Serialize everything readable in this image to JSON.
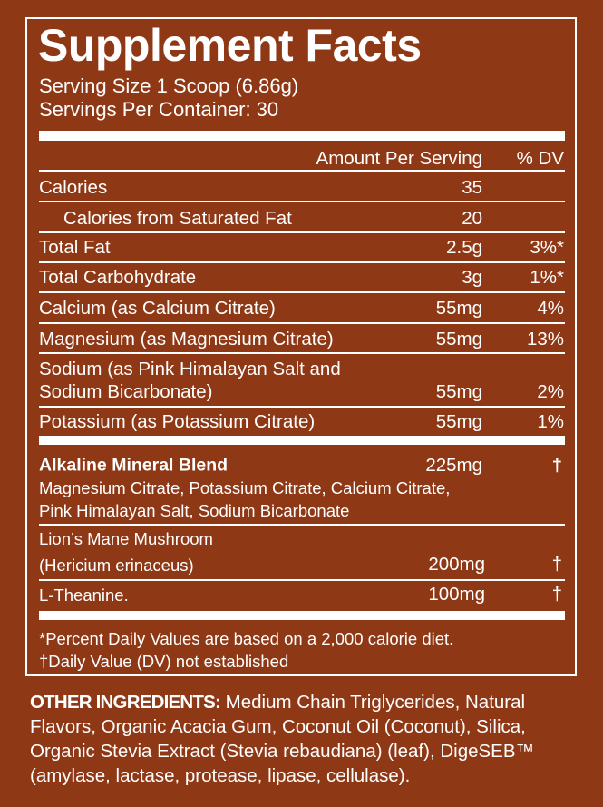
{
  "header": {
    "title": "Supplement Facts",
    "serving_size": "Serving Size 1 Scoop (6.86g)",
    "servings_per_container": "Servings Per Container: 30"
  },
  "columns": {
    "amount": "Amount Per Serving",
    "dv": "% DV"
  },
  "nutrients": [
    {
      "label": "Calories",
      "amount": "35",
      "dv": ""
    },
    {
      "label": "Calories from Saturated Fat",
      "amount": "20",
      "dv": ""
    },
    {
      "label": "Total Fat",
      "amount": "2.5g",
      "dv": "3%*"
    },
    {
      "label": "Total Carbohydrate",
      "amount": "3g",
      "dv": "1%*"
    },
    {
      "label": "Calcium (as Calcium Citrate)",
      "amount": "55mg",
      "dv": "4%"
    },
    {
      "label": "Magnesium (as Magnesium Citrate)",
      "amount": "55mg",
      "dv": "13%"
    },
    {
      "label_line1": "Sodium (as Pink Himalayan Salt and",
      "label_line2": "Sodium Bicarbonate)",
      "amount": "55mg",
      "dv": "2%"
    },
    {
      "label": "Potassium (as Potassium Citrate)",
      "amount": "55mg",
      "dv": "1%"
    }
  ],
  "blend": {
    "label": "Alkaline Mineral Blend",
    "amount": "225mg",
    "dv": "†",
    "components_line1": "Magnesium Citrate, Potassium Citrate, Calcium Citrate,",
    "components_line2": "Pink Himalayan Salt, Sodium Bicarbonate"
  },
  "other_actives": [
    {
      "label_line1": "Lion’s Mane Mushroom",
      "label_line2": "(Hericium erinaceus)",
      "amount": "200mg",
      "dv": "†"
    },
    {
      "label": "L-Theanine.",
      "amount": "100mg",
      "dv": "†"
    }
  ],
  "footnotes": {
    "percent": "*Percent Daily Values are based on a 2,000 calorie diet.",
    "dagger": "†Daily Value (DV) not established"
  },
  "other_ingredients": {
    "heading": "OTHER INGREDIENTS:",
    "text": " Medium Chain Triglycerides, Natural Flavors, Organic Acacia Gum, Coconut Oil (Coconut), Silica, Organic Stevia Extract (Stevia rebaudiana) (leaf), DigeSEB™ (amylase, lactase, protease, lipase, cellulase)."
  },
  "colors": {
    "background": "#8f3816",
    "text": "#ffffff"
  }
}
